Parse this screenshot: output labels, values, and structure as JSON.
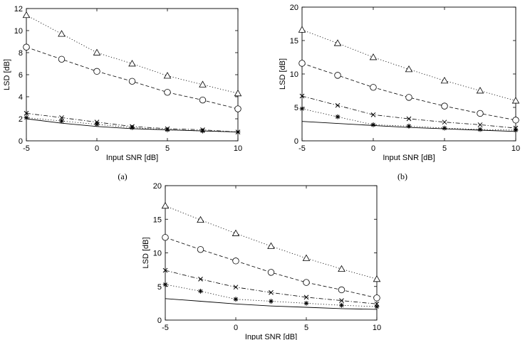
{
  "chart_data": [
    {
      "type": "line",
      "caption": "(a)",
      "xlabel": "Input SNR [dB]",
      "ylabel": "LSD [dB]",
      "xlim": [
        -5,
        10
      ],
      "ylim": [
        0,
        12
      ],
      "xticks": [
        "-5",
        "0",
        "5",
        "10"
      ],
      "yticks": [
        "0",
        "2",
        "4",
        "6",
        "8",
        "10",
        "12"
      ],
      "x": [
        -5,
        -2.5,
        0,
        2.5,
        5,
        7.5,
        10
      ],
      "series": [
        {
          "name": "triangle-dotted",
          "marker": "triangle",
          "style": "dotted",
          "values": [
            11.4,
            9.7,
            8.0,
            7.0,
            5.9,
            5.1,
            4.3
          ]
        },
        {
          "name": "circle-dashed",
          "marker": "circle",
          "style": "dashed",
          "values": [
            8.5,
            7.4,
            6.3,
            5.4,
            4.4,
            3.7,
            2.9
          ]
        },
        {
          "name": "x-dashdot",
          "marker": "x",
          "style": "dashdot",
          "values": [
            2.5,
            2.1,
            1.7,
            1.3,
            1.1,
            1.0,
            0.8
          ]
        },
        {
          "name": "star-dotted",
          "marker": "star",
          "style": "dotted",
          "values": [
            2.1,
            1.8,
            1.5,
            1.2,
            1.0,
            0.9,
            0.8
          ]
        },
        {
          "name": "solid",
          "marker": "none",
          "style": "solid",
          "values": [
            2.0,
            1.6,
            1.3,
            1.1,
            1.0,
            0.9,
            0.8
          ]
        }
      ]
    },
    {
      "type": "line",
      "caption": "(b)",
      "xlabel": "Input SNR [dB]",
      "ylabel": "LSD [dB]",
      "xlim": [
        -5,
        10
      ],
      "ylim": [
        0,
        20
      ],
      "xticks": [
        "-5",
        "0",
        "5",
        "10"
      ],
      "yticks": [
        "0",
        "5",
        "10",
        "15",
        "20"
      ],
      "x": [
        -5,
        -2.5,
        0,
        2.5,
        5,
        7.5,
        10
      ],
      "series": [
        {
          "name": "triangle-dotted",
          "marker": "triangle",
          "style": "dotted",
          "values": [
            16.6,
            14.6,
            12.5,
            10.7,
            9.0,
            7.5,
            6.0
          ]
        },
        {
          "name": "circle-dashed",
          "marker": "circle",
          "style": "dashed",
          "values": [
            11.6,
            9.8,
            8.0,
            6.5,
            5.2,
            4.1,
            3.1
          ]
        },
        {
          "name": "x-dashdot",
          "marker": "x",
          "style": "dashdot",
          "values": [
            6.7,
            5.3,
            3.9,
            3.3,
            2.8,
            2.4,
            1.9
          ]
        },
        {
          "name": "star-dotted",
          "marker": "star",
          "style": "dotted",
          "values": [
            4.8,
            3.6,
            2.4,
            2.2,
            1.9,
            1.7,
            1.6
          ]
        },
        {
          "name": "solid",
          "marker": "none",
          "style": "solid",
          "values": [
            2.9,
            2.6,
            2.3,
            2.0,
            1.8,
            1.6,
            1.4
          ]
        }
      ]
    },
    {
      "type": "line",
      "caption": "",
      "xlabel": "Input SNR [dB]",
      "ylabel": "LSD [dB]",
      "xlim": [
        -5,
        10
      ],
      "ylim": [
        0,
        20
      ],
      "xticks": [
        "-5",
        "0",
        "5",
        "10"
      ],
      "yticks": [
        "0",
        "5",
        "10",
        "15",
        "20"
      ],
      "x": [
        -5,
        -2.5,
        0,
        2.5,
        5,
        7.5,
        10
      ],
      "series": [
        {
          "name": "triangle-dotted",
          "marker": "triangle",
          "style": "dotted",
          "values": [
            17.0,
            14.9,
            12.9,
            11.0,
            9.2,
            7.6,
            6.1
          ]
        },
        {
          "name": "circle-dashed",
          "marker": "circle",
          "style": "dashed",
          "values": [
            12.3,
            10.5,
            8.8,
            7.1,
            5.6,
            4.5,
            3.3
          ]
        },
        {
          "name": "x-dashdot",
          "marker": "x",
          "style": "dashdot",
          "values": [
            7.4,
            6.1,
            4.9,
            4.1,
            3.4,
            2.9,
            2.4
          ]
        },
        {
          "name": "star-dotted",
          "marker": "star",
          "style": "dotted",
          "values": [
            5.3,
            4.3,
            3.1,
            2.8,
            2.5,
            2.2,
            2.0
          ]
        },
        {
          "name": "solid",
          "marker": "none",
          "style": "solid",
          "values": [
            3.2,
            2.8,
            2.4,
            2.1,
            1.9,
            1.7,
            1.6
          ]
        }
      ]
    }
  ]
}
